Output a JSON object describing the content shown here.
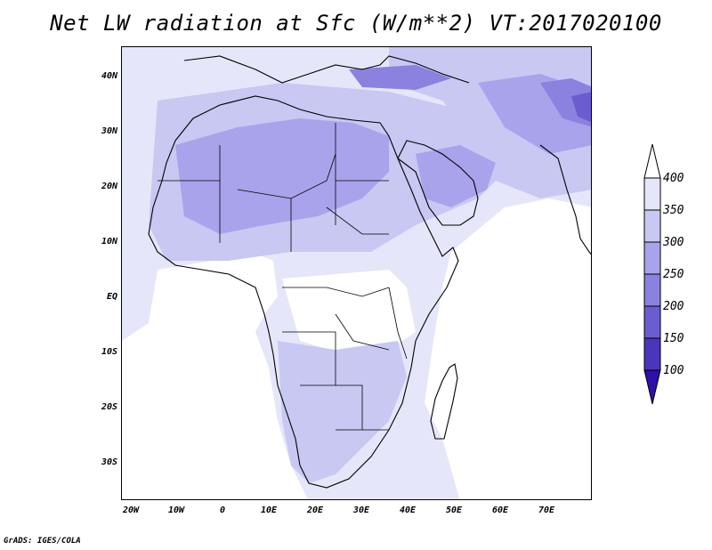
{
  "title": "Net LW radiation at Sfc (W/m**2) VT:2017020100",
  "credit": "GrADS: IGES/COLA",
  "map": {
    "lat_labels": [
      "40N",
      "30N",
      "20N",
      "10N",
      "EQ",
      "10S",
      "20S",
      "30S"
    ],
    "lon_labels": [
      "20W",
      "10W",
      "0",
      "10E",
      "20E",
      "30E",
      "40E",
      "50E",
      "60E",
      "70E"
    ],
    "lat_range": [
      -37,
      45
    ],
    "lon_range": [
      -22,
      80
    ]
  },
  "legend": {
    "levels": [
      "400",
      "350",
      "300",
      "250",
      "200",
      "150",
      "100"
    ],
    "colors": {
      "gt_400": "#ffffff",
      "350_400": "#e6e6fa",
      "300_350": "#c8c8f3",
      "250_300": "#a9a3ec",
      "200_250": "#8b82df",
      "150_200": "#6b5dd0",
      "100_150": "#4a35bd",
      "lt_100": "#2e0fa8"
    }
  }
}
